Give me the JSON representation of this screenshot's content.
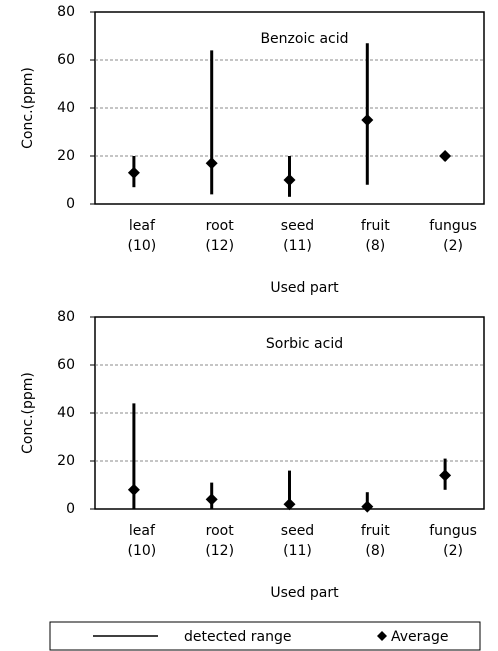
{
  "chart_data": [
    {
      "type": "range",
      "title": "Benzoic acid",
      "ylabel": "Conc.(ppm)",
      "xlabel": "Used part",
      "categories": [
        "leaf",
        "root",
        "seed",
        "fruit",
        "fungus"
      ],
      "counts": [
        "(10)",
        "(12)",
        "(11)",
        "(8)",
        "(2)"
      ],
      "low": [
        7,
        4,
        3,
        8,
        18
      ],
      "high": [
        20,
        64,
        20,
        67,
        21
      ],
      "values": [
        13,
        17,
        10,
        35,
        20
      ],
      "ylim": [
        0,
        80
      ],
      "yticks": [
        0,
        20,
        40,
        60,
        80
      ],
      "grid": true,
      "color": "#000000"
    },
    {
      "type": "range",
      "title": "Sorbic acid",
      "ylabel": "Conc.(ppm)",
      "xlabel": "Used part",
      "categories": [
        "leaf",
        "root",
        "seed",
        "fruit",
        "fungus"
      ],
      "counts": [
        "(10)",
        "(12)",
        "(11)",
        "(8)",
        "(2)"
      ],
      "low": [
        0,
        0,
        0,
        0,
        8
      ],
      "high": [
        44,
        11,
        16,
        7,
        21
      ],
      "values": [
        8,
        4,
        2,
        1,
        14
      ],
      "ylim": [
        0,
        80
      ],
      "yticks": [
        0,
        20,
        40,
        60,
        80
      ],
      "grid": true,
      "color": "#000000"
    }
  ],
  "legend": [
    "detected range",
    "Average"
  ]
}
